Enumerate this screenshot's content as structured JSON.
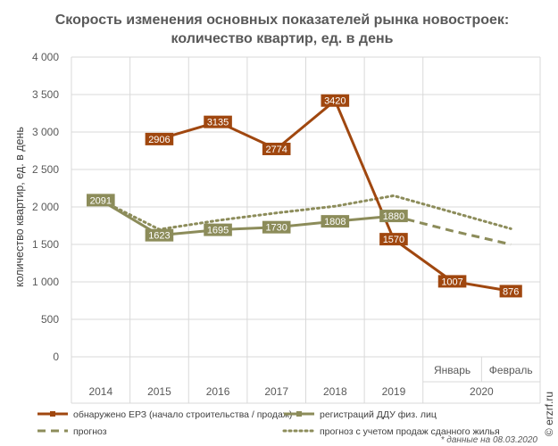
{
  "chart_data": {
    "type": "line",
    "title_lines": [
      "Скорость изменения основных показателей рынка новостроек:",
      "количество квартир, ед. в день"
    ],
    "ylabel": "количество квартир, ед. в день",
    "xlabel": "",
    "ylim": [
      0,
      4000
    ],
    "y_ticks": [
      0,
      500,
      1000,
      1500,
      2000,
      2500,
      3000,
      3500,
      4000
    ],
    "y_tick_labels": [
      "0",
      "500",
      "1 000",
      "1 500",
      "2 000",
      "2 500",
      "3 000",
      "3 500",
      "4 000"
    ],
    "x_categories": [
      "2014",
      "2015",
      "2016",
      "2017",
      "2018",
      "2019",
      "Январь",
      "Февраль"
    ],
    "x_group_labels": [
      "2014",
      "2015",
      "2016",
      "2017",
      "2018",
      "2019",
      "2020"
    ],
    "grid": true,
    "legend_position": "bottom",
    "series": [
      {
        "name": "обнаружено ЕРЗ (начало строительства / продаж)",
        "color": "#a0470f",
        "style": "solid",
        "values": [
          null,
          2906,
          3135,
          2774,
          3420,
          1570,
          1007,
          876
        ],
        "labels": [
          null,
          "2906",
          "3135",
          "2774",
          "3420",
          "1570",
          "1007",
          "876"
        ]
      },
      {
        "name": "регистраций ДДУ физ. лиц",
        "color": "#8c8c5a",
        "style": "solid",
        "values": [
          2091,
          1623,
          1695,
          1730,
          1808,
          1880,
          null,
          null
        ],
        "labels": [
          "2091",
          "1623",
          "1695",
          "1730",
          "1808",
          "1880",
          null,
          null
        ]
      },
      {
        "name": "прогноз",
        "color": "#8c8c5a",
        "style": "dashed",
        "values": [
          null,
          null,
          null,
          null,
          null,
          1880,
          1680,
          1500
        ],
        "labels": [
          null,
          null,
          null,
          null,
          null,
          null,
          null,
          null
        ]
      },
      {
        "name": "прогноз с учетом продаж сданного жилья",
        "color": "#8c8c5a",
        "style": "dotted",
        "values": [
          2091,
          1700,
          1820,
          1920,
          2010,
          2150,
          1930,
          1710
        ],
        "labels": [
          null,
          null,
          null,
          null,
          null,
          null,
          null,
          null
        ]
      }
    ],
    "footnote": "* данные на 08.03.2020",
    "watermark": "© erzrf.ru"
  }
}
